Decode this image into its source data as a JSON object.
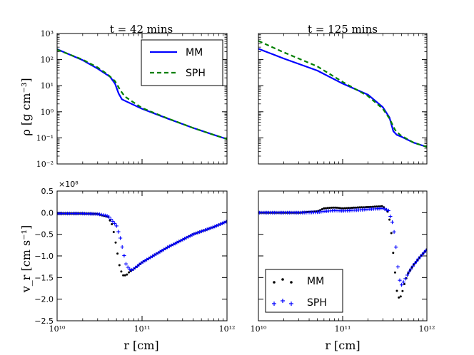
{
  "figure": {
    "panel_titles": [
      "t = 42 mins",
      "t = 125 mins"
    ],
    "ylabel_top": "ρ [g cm⁻³]",
    "ylabel_bottom": "v_r [cm s⁻¹]",
    "xlabel": "r [cm]",
    "offset_label": "×10⁸"
  },
  "colors": {
    "mm_line": "#0000ff",
    "sph_line": "#007f00",
    "mm_points": "#000000",
    "sph_points": "#0000ff"
  },
  "chart_data": [
    {
      "id": "density-42",
      "type": "line",
      "title": "t = 42 mins",
      "xscale": "log",
      "yscale": "log",
      "xlim": [
        10000000000.0,
        1000000000000.0
      ],
      "ylim": [
        0.01,
        1000
      ],
      "xlabel": "",
      "ylabel": "ρ [g cm⁻³]",
      "legend": {
        "position": "top-right",
        "entries": [
          "MM",
          "SPH"
        ]
      },
      "series": [
        {
          "name": "MM",
          "style": "solid",
          "x": [
            10000000000.0,
            20000000000.0,
            30000000000.0,
            42000000000.0,
            48000000000.0,
            53000000000.0,
            58000000000.0,
            65000000000.0,
            100000000000.0,
            200000000000.0,
            400000000000.0,
            700000000000.0,
            1000000000000.0
          ],
          "y": [
            250,
            95,
            45,
            22,
            12,
            5,
            3,
            2.5,
            1.3,
            0.55,
            0.24,
            0.13,
            0.09
          ]
        },
        {
          "name": "SPH",
          "style": "dashed",
          "x": [
            10000000000.0,
            20000000000.0,
            30000000000.0,
            40000000000.0,
            48000000000.0,
            55000000000.0,
            62000000000.0,
            70000000000.0,
            100000000000.0,
            200000000000.0,
            400000000000.0,
            700000000000.0,
            1000000000000.0
          ],
          "y": [
            240,
            100,
            50,
            26,
            15,
            7,
            4,
            3,
            1.4,
            0.56,
            0.24,
            0.13,
            0.09
          ]
        }
      ],
      "tick_labels": {
        "x": [],
        "y": [
          "10⁻²",
          "10⁻¹",
          "10⁰",
          "10¹",
          "10²",
          "10³"
        ]
      }
    },
    {
      "id": "density-125",
      "type": "line",
      "title": "t = 125 mins",
      "xscale": "log",
      "yscale": "log",
      "xlim": [
        10000000000.0,
        1000000000000.0
      ],
      "ylim": [
        0.01,
        1000
      ],
      "xlabel": "",
      "ylabel": "",
      "series": [
        {
          "name": "MM",
          "style": "solid",
          "x": [
            10000000000.0,
            20000000000.0,
            50000000000.0,
            100000000000.0,
            200000000000.0,
            300000000000.0,
            360000000000.0,
            400000000000.0,
            440000000000.0,
            500000000000.0,
            700000000000.0,
            1000000000000.0
          ],
          "y": [
            260,
            110,
            38,
            12,
            4.5,
            1.5,
            0.6,
            0.18,
            0.13,
            0.11,
            0.065,
            0.045
          ]
        },
        {
          "name": "SPH",
          "style": "dashed",
          "x": [
            10000000000.0,
            20000000000.0,
            50000000000.0,
            100000000000.0,
            200000000000.0,
            300000000000.0,
            360000000000.0,
            420000000000.0,
            480000000000.0,
            550000000000.0,
            700000000000.0,
            1000000000000.0
          ],
          "y": [
            520,
            190,
            55,
            14,
            4,
            1.3,
            0.55,
            0.2,
            0.13,
            0.1,
            0.065,
            0.045
          ]
        }
      ],
      "tick_labels": {
        "x": [],
        "y": []
      }
    },
    {
      "id": "velocity-42",
      "type": "scatter",
      "title": "",
      "xscale": "log",
      "yscale": "linear",
      "xlim": [
        10000000000.0,
        1000000000000.0
      ],
      "ylim": [
        -2.5,
        0.5
      ],
      "y_multiplier": "×10⁸",
      "xlabel": "r [cm]",
      "ylabel": "v_r [cm s⁻¹]",
      "series": [
        {
          "name": "MM",
          "marker": "dot",
          "x": [
            10000000000.0,
            20000000000.0,
            30000000000.0,
            40000000000.0,
            45000000000.0,
            50000000000.0,
            55000000000.0,
            60000000000.0,
            65000000000.0,
            70000000000.0,
            80000000000.0,
            100000000000.0,
            200000000000.0,
            400000000000.0,
            700000000000.0,
            1000000000000.0
          ],
          "y": [
            -0.02,
            -0.02,
            -0.03,
            -0.1,
            -0.3,
            -0.8,
            -1.3,
            -1.45,
            -1.45,
            -1.38,
            -1.3,
            -1.15,
            -0.8,
            -0.5,
            -0.33,
            -0.2
          ]
        },
        {
          "name": "SPH",
          "marker": "plus",
          "x": [
            10000000000.0,
            20000000000.0,
            30000000000.0,
            40000000000.0,
            50000000000.0,
            55000000000.0,
            60000000000.0,
            65000000000.0,
            70000000000.0,
            75000000000.0,
            80000000000.0,
            100000000000.0,
            200000000000.0,
            400000000000.0,
            700000000000.0,
            1000000000000.0
          ],
          "y": [
            -0.02,
            -0.02,
            -0.03,
            -0.08,
            -0.3,
            -0.55,
            -0.9,
            -1.2,
            -1.3,
            -1.33,
            -1.3,
            -1.15,
            -0.8,
            -0.5,
            -0.33,
            -0.2
          ]
        }
      ],
      "tick_labels": {
        "x": [
          "10¹⁰",
          "10¹¹",
          "10¹²"
        ],
        "y": [
          "−2.5",
          "−2.0",
          "−1.5",
          "−1.0",
          "−0.5",
          "0.0",
          "0.5"
        ]
      }
    },
    {
      "id": "velocity-125",
      "type": "scatter",
      "title": "",
      "xscale": "log",
      "yscale": "linear",
      "xlim": [
        10000000000.0,
        1000000000000.0
      ],
      "ylim": [
        -2.5,
        0.5
      ],
      "xlabel": "r [cm]",
      "ylabel": "",
      "legend": {
        "position": "bottom-left",
        "entries": [
          "MM",
          "SPH"
        ]
      },
      "series": [
        {
          "name": "MM",
          "marker": "dot",
          "x": [
            10000000000.0,
            30000000000.0,
            50000000000.0,
            60000000000.0,
            80000000000.0,
            100000000000.0,
            150000000000.0,
            200000000000.0,
            300000000000.0,
            350000000000.0,
            380000000000.0,
            410000000000.0,
            440000000000.0,
            470000000000.0,
            500000000000.0,
            550000000000.0,
            600000000000.0,
            700000000000.0,
            850000000000.0,
            1000000000000.0
          ],
          "y": [
            0.0,
            0.0,
            0.03,
            0.1,
            0.12,
            0.1,
            0.12,
            0.13,
            0.15,
            0.0,
            -0.5,
            -1.2,
            -1.8,
            -2.0,
            -1.9,
            -1.6,
            -1.4,
            -1.2,
            -1.0,
            -0.85
          ]
        },
        {
          "name": "SPH",
          "marker": "plus",
          "x": [
            10000000000.0,
            30000000000.0,
            50000000000.0,
            60000000000.0,
            80000000000.0,
            100000000000.0,
            150000000000.0,
            200000000000.0,
            300000000000.0,
            350000000000.0,
            400000000000.0,
            430000000000.0,
            460000000000.0,
            490000000000.0,
            530000000000.0,
            600000000000.0,
            700000000000.0,
            850000000000.0,
            1000000000000.0
          ],
          "y": [
            0.0,
            0.0,
            0.01,
            0.03,
            0.05,
            0.04,
            0.06,
            0.08,
            0.1,
            0.05,
            -0.3,
            -0.8,
            -1.4,
            -1.7,
            -1.6,
            -1.4,
            -1.2,
            -1.0,
            -0.85
          ]
        }
      ],
      "tick_labels": {
        "x": [
          "10¹⁰",
          "10¹¹",
          "10¹²"
        ],
        "y": []
      }
    }
  ]
}
